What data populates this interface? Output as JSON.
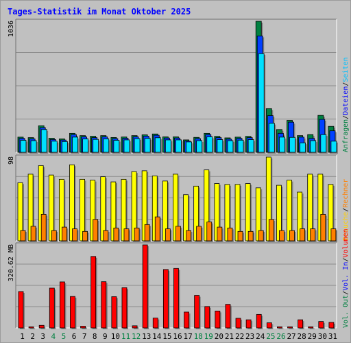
{
  "title": "Tages-Statistik im Monat Oktober 2025",
  "colors": {
    "background": "#c0c0c0",
    "hits": "#008040",
    "files": "#0040ff",
    "pages": "#00e0ff",
    "visits": "#ffff00",
    "sites": "#ff8000",
    "kbytes": "#ff0000",
    "weekday": "#000000",
    "weekend": "#008040",
    "title": "#0000ff"
  },
  "legends": {
    "top": [
      {
        "text": "Anfragen",
        "color": "#008040"
      },
      {
        "text": "Dateien",
        "color": "#0000ff"
      },
      {
        "text": "Seiten",
        "color": "#00c0ff"
      }
    ],
    "middle": [
      {
        "text": "Besuche",
        "color": "#ffd000"
      },
      {
        "text": "Rechner",
        "color": "#ff8000"
      }
    ],
    "bottom": [
      {
        "text": "Vol. Out",
        "color": "#008040"
      },
      {
        "text": "Vol. In",
        "color": "#0000ff"
      },
      {
        "text": "Volumen",
        "color": "#ff0000"
      }
    ]
  },
  "chart_data": [
    {
      "type": "bar",
      "name": "hits-files-pages",
      "ymax_label": "1036",
      "ylim": [
        0,
        1036
      ],
      "categories": [
        "1",
        "2",
        "3",
        "4",
        "5",
        "6",
        "7",
        "8",
        "9",
        "10",
        "11",
        "12",
        "13",
        "14",
        "15",
        "16",
        "17",
        "18",
        "19",
        "20",
        "21",
        "22",
        "23",
        "24",
        "25",
        "26",
        "27",
        "28",
        "29",
        "30",
        "31"
      ],
      "weekend_days": [
        "4",
        "5",
        "11",
        "12",
        "18",
        "19",
        "25",
        "26"
      ],
      "series": [
        {
          "name": "Anfragen",
          "values": [
            120,
            116,
            210,
            111,
            106,
            150,
            132,
            127,
            132,
            117,
            121,
            132,
            138,
            145,
            122,
            122,
            98,
            118,
            150,
            126,
            114,
            120,
            126,
            1036,
            345,
            180,
            252,
            132,
            140,
            292,
            205
          ]
        },
        {
          "name": "Dateien",
          "values": [
            110,
            106,
            195,
            101,
            97,
            140,
            122,
            116,
            122,
            108,
            111,
            122,
            128,
            135,
            113,
            113,
            89,
            108,
            140,
            116,
            104,
            110,
            116,
            920,
            290,
            150,
            238,
            120,
            110,
            260,
            170
          ]
        },
        {
          "name": "Seiten",
          "values": [
            95,
            92,
            180,
            88,
            85,
            120,
            106,
            102,
            106,
            95,
            98,
            108,
            110,
            115,
            98,
            98,
            82,
            92,
            122,
            100,
            92,
            96,
            100,
            780,
            230,
            120,
            118,
            75,
            92,
            140,
            88
          ]
        }
      ]
    },
    {
      "type": "bar",
      "name": "visits-sites",
      "ymax_label": "98",
      "ylim": [
        0,
        98
      ],
      "categories": [
        "1",
        "2",
        "3",
        "4",
        "5",
        "6",
        "7",
        "8",
        "9",
        "10",
        "11",
        "12",
        "13",
        "14",
        "15",
        "16",
        "17",
        "18",
        "19",
        "20",
        "21",
        "22",
        "23",
        "24",
        "25",
        "26",
        "27",
        "28",
        "29",
        "30",
        "31"
      ],
      "series": [
        {
          "name": "Besuche",
          "values": [
            68,
            78,
            88,
            77,
            72,
            89,
            72,
            71,
            75,
            69,
            72,
            81,
            82,
            76,
            70,
            78,
            54,
            64,
            83,
            67,
            66,
            66,
            67,
            62,
            98,
            65,
            71,
            57,
            78,
            78,
            66
          ]
        },
        {
          "name": "Rechner",
          "values": [
            12,
            17,
            31,
            12,
            16,
            14,
            11,
            25,
            12,
            15,
            14,
            15,
            19,
            28,
            14,
            17,
            12,
            17,
            22,
            16,
            15,
            11,
            11,
            12,
            25,
            12,
            12,
            14,
            14,
            31,
            14
          ]
        }
      ]
    },
    {
      "type": "bar",
      "name": "volume",
      "ymax_label": "320.62 MB",
      "ylim": [
        0,
        388
      ],
      "categories": [
        "1",
        "2",
        "3",
        "4",
        "5",
        "6",
        "7",
        "8",
        "9",
        "10",
        "11",
        "12",
        "13",
        "14",
        "15",
        "16",
        "17",
        "18",
        "19",
        "20",
        "21",
        "22",
        "23",
        "24",
        "25",
        "26",
        "27",
        "28",
        "29",
        "30",
        "31"
      ],
      "series": [
        {
          "name": "Volumen",
          "values": [
            170,
            5,
            12,
            186,
            215,
            147,
            8,
            334,
            216,
            146,
            188,
            10,
            390,
            46,
            273,
            278,
            74,
            152,
            100,
            79,
            110,
            45,
            38,
            63,
            24,
            5,
            5,
            38,
            5,
            30,
            26
          ]
        }
      ]
    }
  ]
}
